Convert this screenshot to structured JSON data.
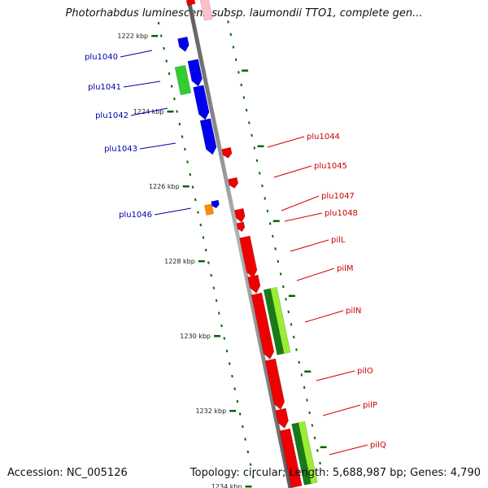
{
  "title": "Photorhabdus luminescens subsp. laumondii TTO1, complete gen...",
  "footer": {
    "accession": "Accession: NC_005126",
    "stats": "Topology: circular; Length: 5,688,987 bp; Genes: 4,790"
  },
  "colors": {
    "backbone": "#8c8c8c",
    "forward_gene": "#0000ee",
    "reverse_gene": "#ee0000",
    "orange_gene": "#ff8c00",
    "pink_gene": "#ffc0cb",
    "green_gene": "#33cc33",
    "dark_green_gene": "#1a7a1a",
    "lime_gene": "#99ee33",
    "tick": "#006400",
    "forward_label": "#0000aa",
    "reverse_label": "#cc0000"
  },
  "ruler_labels": [
    "1222 kbp",
    "1224 kbp",
    "1226 kbp",
    "1228 kbp",
    "1230 kbp",
    "1232 kbp",
    "1234 kbp"
  ],
  "forward_labels": [
    "plu1040",
    "plu1041",
    "plu1042",
    "plu1043",
    "plu1046"
  ],
  "reverse_labels": [
    "plu1044",
    "plu1045",
    "plu1047",
    "plu1048",
    "pilL",
    "pilM",
    "pilN",
    "pilO",
    "pilP",
    "pilQ"
  ]
}
